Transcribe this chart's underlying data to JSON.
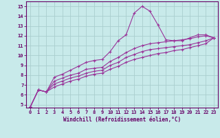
{
  "xlabel": "Windchill (Refroidissement éolien,°C)",
  "background_color": "#c8eaea",
  "grid_color": "#aacece",
  "line_color": "#993399",
  "xlim": [
    -0.5,
    23.5
  ],
  "ylim": [
    4.7,
    15.5
  ],
  "xticks": [
    0,
    1,
    2,
    3,
    4,
    5,
    6,
    7,
    8,
    9,
    10,
    11,
    12,
    13,
    14,
    15,
    16,
    17,
    18,
    19,
    20,
    21,
    22,
    23
  ],
  "yticks": [
    5,
    6,
    7,
    8,
    9,
    10,
    11,
    12,
    13,
    14,
    15
  ],
  "line1_x": [
    0,
    1,
    2,
    3,
    4,
    5,
    6,
    7,
    8,
    9,
    10,
    11,
    12,
    13,
    14,
    15,
    16,
    17,
    18,
    19,
    20,
    21,
    22,
    23
  ],
  "line1_y": [
    4.8,
    6.5,
    6.3,
    7.8,
    8.1,
    8.5,
    8.9,
    9.3,
    9.5,
    9.6,
    10.4,
    11.5,
    12.1,
    14.3,
    15.0,
    14.5,
    13.1,
    11.6,
    11.5,
    11.5,
    11.8,
    12.1,
    12.1,
    11.8
  ],
  "line2_x": [
    0,
    1,
    2,
    3,
    4,
    5,
    6,
    7,
    8,
    9,
    10,
    11,
    12,
    13,
    14,
    15,
    16,
    17,
    18,
    19,
    20,
    21,
    22,
    23
  ],
  "line2_y": [
    4.8,
    6.5,
    6.3,
    7.4,
    7.7,
    8.0,
    8.2,
    8.6,
    8.7,
    8.8,
    9.4,
    9.8,
    10.3,
    10.7,
    11.0,
    11.2,
    11.3,
    11.4,
    11.5,
    11.6,
    11.7,
    11.9,
    12.0,
    11.8
  ],
  "line3_x": [
    0,
    1,
    2,
    3,
    4,
    5,
    6,
    7,
    8,
    9,
    10,
    11,
    12,
    13,
    14,
    15,
    16,
    17,
    18,
    19,
    20,
    21,
    22,
    23
  ],
  "line3_y": [
    4.8,
    6.5,
    6.3,
    7.1,
    7.4,
    7.7,
    7.9,
    8.2,
    8.4,
    8.5,
    9.0,
    9.3,
    9.8,
    10.1,
    10.4,
    10.6,
    10.7,
    10.8,
    10.9,
    11.0,
    11.1,
    11.3,
    11.5,
    11.8
  ],
  "line4_x": [
    0,
    1,
    2,
    3,
    4,
    5,
    6,
    7,
    8,
    9,
    10,
    11,
    12,
    13,
    14,
    15,
    16,
    17,
    18,
    19,
    20,
    21,
    22,
    23
  ],
  "line4_y": [
    4.8,
    6.5,
    6.3,
    6.8,
    7.1,
    7.4,
    7.6,
    7.9,
    8.1,
    8.2,
    8.6,
    8.9,
    9.3,
    9.6,
    9.8,
    10.0,
    10.2,
    10.3,
    10.5,
    10.6,
    10.8,
    11.0,
    11.2,
    11.8
  ]
}
